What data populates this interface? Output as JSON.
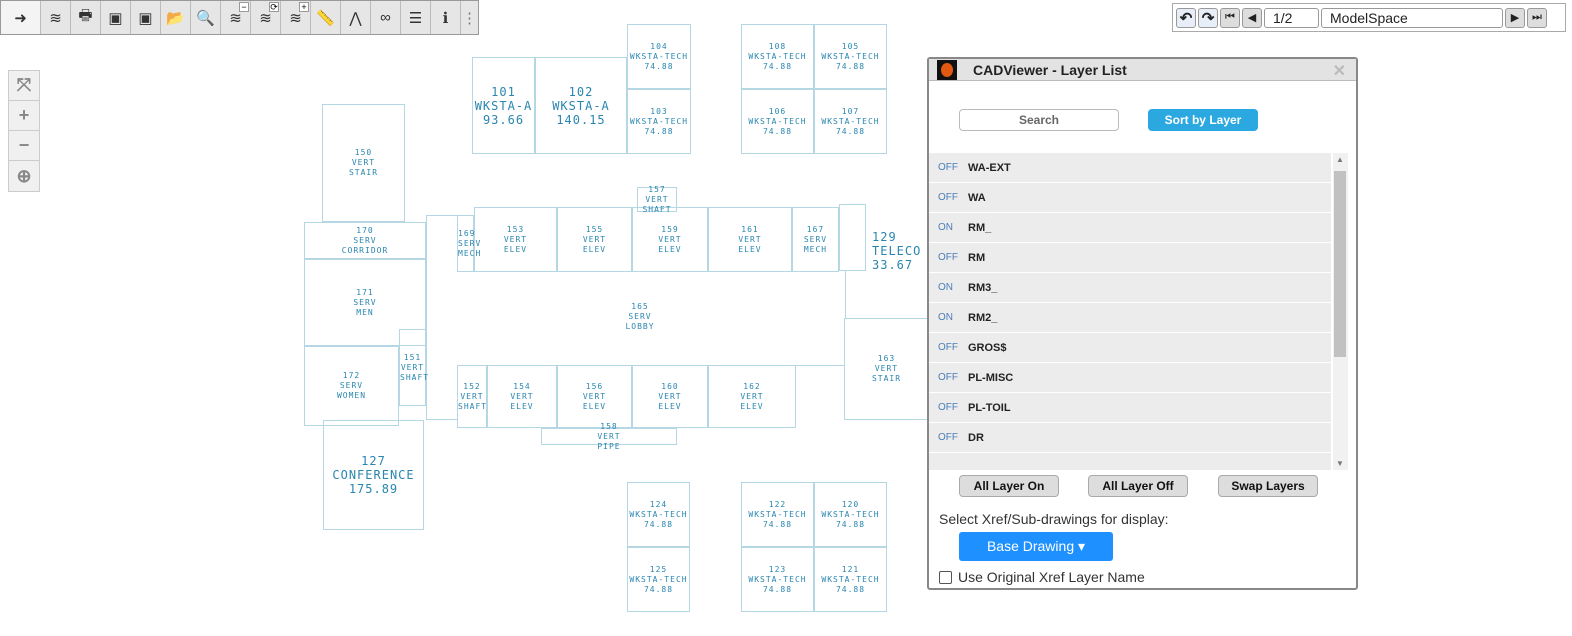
{
  "toolbar": {
    "items": [
      {
        "name": "arrow-layers-icon",
        "glyph": "➜"
      },
      {
        "name": "layers-icon",
        "glyph": "≋"
      },
      {
        "name": "print-icon",
        "glyph": "🖶"
      },
      {
        "name": "window-black-icon",
        "glyph": "▣"
      },
      {
        "name": "window-color-icon",
        "glyph": "▣"
      },
      {
        "name": "open-folder-icon",
        "glyph": "📂"
      },
      {
        "name": "search-text-icon",
        "glyph": "🔍"
      },
      {
        "name": "layer-minus-icon",
        "glyph": "≋",
        "sup": "−"
      },
      {
        "name": "layer-swap-icon",
        "glyph": "≋",
        "sup": "⟳"
      },
      {
        "name": "layer-plus-icon",
        "glyph": "≋",
        "sup": "+"
      },
      {
        "name": "ruler-icon",
        "glyph": "📏"
      },
      {
        "name": "compass-icon",
        "glyph": "⋀"
      },
      {
        "name": "glasses-icon",
        "glyph": "∞"
      },
      {
        "name": "lines-icon",
        "glyph": "☰"
      },
      {
        "name": "info-icon",
        "glyph": "ℹ"
      },
      {
        "name": "more-icon",
        "glyph": "⋮"
      }
    ]
  },
  "nav": {
    "page": "1/2",
    "space": "ModelSpace"
  },
  "zoom_panel": [
    {
      "name": "zoom-extents-icon",
      "glyph": "⤧"
    },
    {
      "name": "zoom-in-icon",
      "glyph": "+"
    },
    {
      "name": "zoom-out-icon",
      "glyph": "−"
    },
    {
      "name": "zoom-window-icon",
      "glyph": "⊕"
    }
  ],
  "rooms": [
    [
      "101",
      "WKSTA-A",
      "93.66"
    ],
    [
      "102",
      "WKSTA-A",
      "140.15"
    ],
    [
      "104",
      "WKSTA-TECH",
      "74.88"
    ],
    [
      "103",
      "WKSTA-TECH",
      "74.88"
    ],
    [
      "108",
      "WKSTA-TECH",
      "74.88"
    ],
    [
      "105",
      "WKSTA-TECH",
      "74.88"
    ],
    [
      "106",
      "WKSTA-TECH",
      "74.88"
    ],
    [
      "107",
      "WKSTA-TECH",
      "74.88"
    ],
    [
      "150",
      "VERT",
      "STAIR"
    ],
    [
      "170",
      "SERV",
      "CORRIDOR"
    ],
    [
      "171",
      "SERV",
      "MEN"
    ],
    [
      "172",
      "SERV",
      "WOMEN"
    ],
    [
      "151",
      "VERT",
      "SHAFT"
    ],
    [
      "127",
      "CONFERENCE",
      "175.89"
    ],
    [
      "169",
      "SERV",
      "MECH"
    ],
    [
      "153",
      "VERT",
      "ELEV"
    ],
    [
      "155",
      "VERT",
      "ELEV"
    ],
    [
      "159",
      "VERT",
      "ELEV"
    ],
    [
      "161",
      "VERT",
      "ELEV"
    ],
    [
      "167",
      "SERV",
      "MECH"
    ],
    [
      "157",
      "VERT",
      "SHAFT"
    ],
    [
      "163",
      "VERT",
      "STAIR"
    ],
    [
      "152",
      "VERT",
      "SHAFT"
    ],
    [
      "154",
      "VERT",
      "ELEV"
    ],
    [
      "156",
      "VERT",
      "ELEV"
    ],
    [
      "160",
      "VERT",
      "ELEV"
    ],
    [
      "162",
      "VERT",
      "ELEV"
    ],
    [
      "158",
      "VERT",
      "PIPE"
    ],
    [
      "124",
      "WKSTA-TECH",
      "74.88"
    ],
    [
      "125",
      "WKSTA-TECH",
      "74.88"
    ],
    [
      "122",
      "WKSTA-TECH",
      "74.88"
    ],
    [
      "120",
      "WKSTA-TECH",
      "74.88"
    ],
    [
      "123",
      "WKSTA-TECH",
      "74.88"
    ],
    [
      "121",
      "WKSTA-TECH",
      "74.88"
    ]
  ],
  "lobby": [
    "165",
    "SERV",
    "LOBBY"
  ],
  "telecom": [
    "129",
    "TELECO",
    "33.67"
  ],
  "dialog": {
    "title": "CADViewer - Layer List",
    "search_placeholder": "Search",
    "sort_label": "Sort by Layer",
    "layers": [
      {
        "state": "OFF",
        "name": "WA-EXT"
      },
      {
        "state": "OFF",
        "name": "WA"
      },
      {
        "state": "ON",
        "name": "RM_"
      },
      {
        "state": "OFF",
        "name": "RM"
      },
      {
        "state": "ON",
        "name": "RM3_"
      },
      {
        "state": "ON",
        "name": "RM2_"
      },
      {
        "state": "OFF",
        "name": "GROS$"
      },
      {
        "state": "OFF",
        "name": "PL-MISC"
      },
      {
        "state": "OFF",
        "name": "PL-TOIL"
      },
      {
        "state": "OFF",
        "name": "DR"
      }
    ],
    "all_on": "All Layer On",
    "all_off": "All Layer Off",
    "swap": "Swap Layers",
    "xref_label": "Select Xref/Sub-drawings for display:",
    "xref_value": "Base Drawing ▾",
    "use_original": "Use Original Xref Layer Name"
  }
}
